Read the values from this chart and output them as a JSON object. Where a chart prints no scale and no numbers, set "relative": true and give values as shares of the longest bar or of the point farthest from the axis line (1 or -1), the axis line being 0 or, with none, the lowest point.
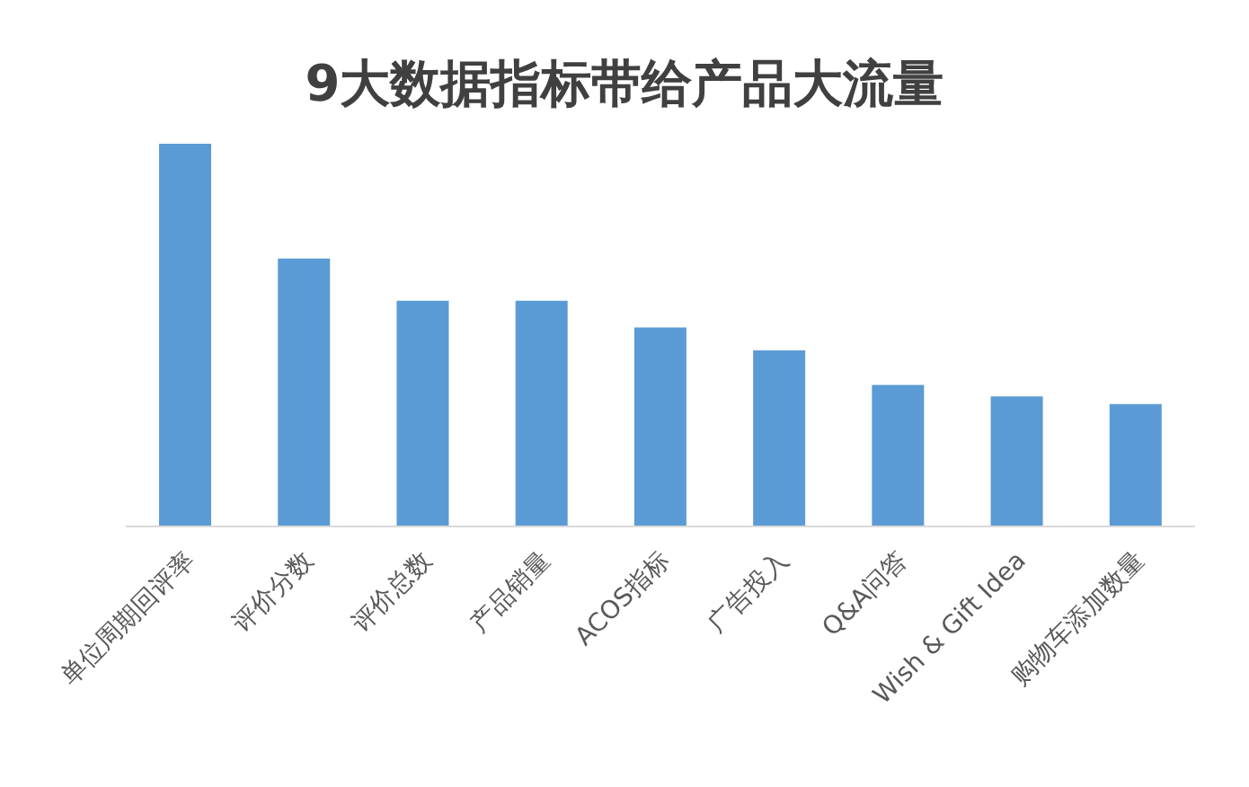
{
  "chart_data": {
    "type": "bar",
    "title": "9大数据指标带给产品大流量",
    "categories": [
      "单位周期回评率",
      "评价分数",
      "评价总数",
      "产品销量",
      "ACOS指标",
      "广告投入",
      "Q&A问答",
      "Wish & Gift Idea",
      "购物车添加数量"
    ],
    "values": [
      1,
      0.7,
      0.59,
      0.59,
      0.52,
      0.46,
      0.37,
      0.34,
      0.32
    ],
    "color": "#5b9bd5",
    "relative": true
  }
}
